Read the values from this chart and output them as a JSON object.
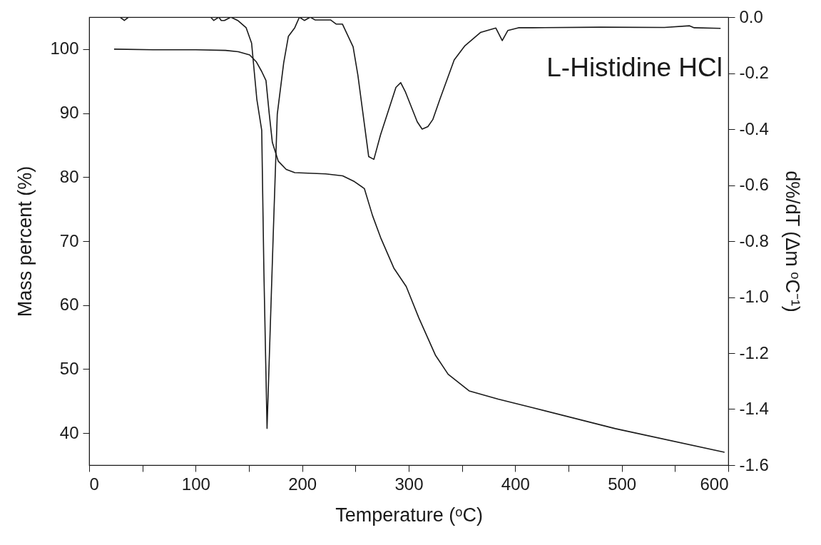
{
  "chart_data": {
    "type": "line",
    "xlabel": "Temperature (ᵒC)",
    "ylabel": "Mass percent (%)",
    "y2label": "d%/dT (Δm ᵒC⁻¹)",
    "annotations": [
      "L-Histidine HCl"
    ],
    "xlim": [
      0,
      600
    ],
    "xticks": [
      0,
      {
        "value": 50,
        "label": null
      },
      100,
      {
        "value": 150,
        "label": null
      },
      200,
      {
        "value": 250,
        "label": null
      },
      300,
      {
        "value": 350,
        "label": null
      },
      400,
      {
        "value": 450,
        "label": null
      },
      500,
      {
        "value": 550,
        "label": null
      },
      600
    ],
    "ylim": [
      35,
      105
    ],
    "yticks": [
      40,
      50,
      60,
      70,
      80,
      90,
      100
    ],
    "y2lim": [
      -1.6,
      0
    ],
    "y2ticks": [
      {
        "value": -1.6,
        "label": "-1.6"
      },
      -1.4,
      -1.2,
      {
        "value": -1.0,
        "label": "-1.0"
      },
      -0.8,
      -0.6,
      -0.4,
      -0.2,
      {
        "value": 0,
        "label": "0.0"
      }
    ],
    "grid": false,
    "series": [
      {
        "color": "#1a1a1a",
        "x": [
          23.4,
          60,
          100,
          128,
          140,
          150.7,
          157,
          162,
          166,
          169,
          172,
          177.5,
          185,
          193,
          222,
          238,
          249,
          258.4,
          266,
          274,
          286,
          297.7,
          309.5,
          325,
          337,
          356.7,
          384,
          415.6,
          494,
          596.5
        ],
        "values": [
          100,
          99.9,
          99.9,
          99.8,
          99.6,
          99.1,
          98,
          96.5,
          95.1,
          90,
          85.4,
          82.5,
          81.2,
          80.7,
          80.5,
          80.2,
          79.3,
          78.2,
          74,
          70.4,
          65.8,
          62.9,
          58.0,
          52.2,
          49.2,
          46.6,
          45.3,
          44.0,
          40.7,
          37.0
        ]
      },
      {
        "color": "#1a1a1a",
        "axis": "y2",
        "x": [
          23.4,
          29,
          33,
          37,
          114,
          117,
          121.7,
          124,
          127,
          133,
          139.5,
          147.4,
          152.5,
          157.4,
          162,
          164,
          167,
          173,
          176.6,
          182.6,
          187,
          193,
          197.4,
          202,
          207.6,
          212,
          226.6,
          232,
          237.8,
          247.8,
          252.3,
          262.4,
          267.3,
          273.5,
          288,
          292.5,
          297,
          308,
          312.6,
          318,
          322.6,
          329.3,
          342.7,
          352.8,
          367.3,
          381.8,
          387.8,
          393,
          403,
          416.4,
          480,
          540,
          563.7,
          568,
          592.8
        ],
        "values": [
          0,
          0,
          -0.012,
          0,
          0,
          -0.012,
          0,
          -0.012,
          -0.012,
          0,
          -0.012,
          -0.038,
          -0.093,
          -0.293,
          -0.404,
          -0.9,
          -1.469,
          -0.754,
          -0.347,
          -0.164,
          -0.069,
          -0.038,
          0,
          -0.012,
          0,
          -0.01,
          -0.01,
          -0.025,
          -0.025,
          -0.106,
          -0.208,
          -0.498,
          -0.508,
          -0.421,
          -0.251,
          -0.234,
          -0.268,
          -0.374,
          -0.4,
          -0.391,
          -0.366,
          -0.293,
          -0.153,
          -0.102,
          -0.055,
          -0.039,
          -0.084,
          -0.048,
          -0.038,
          -0.038,
          -0.036,
          -0.037,
          -0.031,
          -0.038,
          -0.04
        ]
      }
    ]
  }
}
